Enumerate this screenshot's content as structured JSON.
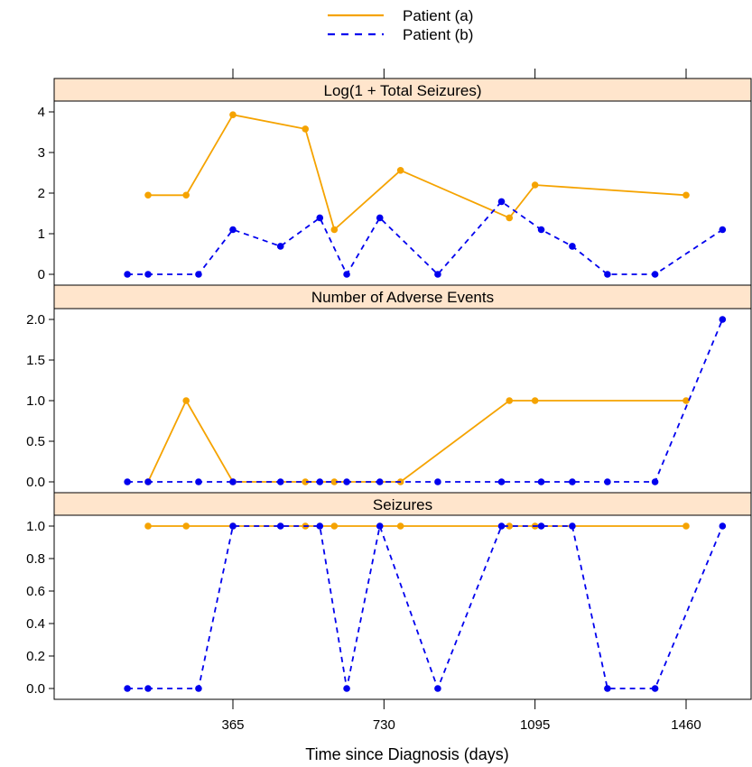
{
  "chart_data": {
    "type": "line",
    "xlabel": "Time since Diagnosis (days)",
    "x_ticks": [
      365,
      730,
      1095,
      1460
    ],
    "legend": {
      "placement": "top-center",
      "entries": [
        {
          "name": "Patient (a)",
          "color": "#F5A300",
          "dash": "solid"
        },
        {
          "name": "Patient (b)",
          "color": "#0000EE",
          "dash": "dashed"
        }
      ]
    },
    "panels": [
      {
        "title": "Log(1 + Total Seizures)",
        "ylim": [
          0,
          4
        ],
        "y_ticks": [
          0,
          1,
          2,
          3,
          4
        ],
        "series": [
          {
            "name": "Patient (a)",
            "x": [
              160,
              252,
              365,
              540,
              610,
              770,
              1033,
              1095,
              1460
            ],
            "y": [
              1.95,
              1.95,
              3.93,
              3.58,
              1.1,
              2.56,
              1.39,
              2.2,
              1.95
            ]
          },
          {
            "name": "Patient (b)",
            "x": [
              110,
              160,
              282,
              365,
              480,
              575,
              640,
              720,
              860,
              1014,
              1110,
              1185,
              1270,
              1385,
              1548
            ],
            "y": [
              0,
              0,
              0,
              1.1,
              0.69,
              1.39,
              0,
              1.39,
              0,
              1.79,
              1.1,
              0.69,
              0,
              0,
              1.1
            ]
          }
        ]
      },
      {
        "title": "Number of Adverse Events",
        "ylim": [
          0,
          2
        ],
        "y_ticks": [
          0.0,
          0.5,
          1.0,
          1.5,
          2.0
        ],
        "series": [
          {
            "name": "Patient (a)",
            "x": [
              160,
              252,
              365,
              540,
              610,
              770,
              1033,
              1095,
              1460
            ],
            "y": [
              0,
              1,
              0,
              0,
              0,
              0,
              1,
              1,
              1
            ]
          },
          {
            "name": "Patient (b)",
            "x": [
              110,
              160,
              282,
              365,
              480,
              575,
              640,
              720,
              860,
              1014,
              1110,
              1185,
              1270,
              1385,
              1548
            ],
            "y": [
              0,
              0,
              0,
              0,
              0,
              0,
              0,
              0,
              0,
              0,
              0,
              0,
              0,
              0,
              2
            ]
          }
        ]
      },
      {
        "title": "Seizures",
        "ylim": [
          0,
          1
        ],
        "y_ticks": [
          0.0,
          0.2,
          0.4,
          0.6,
          0.8,
          1.0
        ],
        "series": [
          {
            "name": "Patient (a)",
            "x": [
              160,
              252,
              365,
              540,
              610,
              770,
              1033,
              1095,
              1460
            ],
            "y": [
              1,
              1,
              1,
              1,
              1,
              1,
              1,
              1,
              1
            ]
          },
          {
            "name": "Patient (b)",
            "x": [
              110,
              160,
              282,
              365,
              480,
              575,
              640,
              720,
              860,
              1014,
              1110,
              1185,
              1270,
              1385,
              1548
            ],
            "y": [
              0,
              0,
              0,
              1,
              1,
              1,
              0,
              1,
              0,
              1,
              1,
              1,
              0,
              0,
              1
            ]
          }
        ]
      }
    ]
  }
}
